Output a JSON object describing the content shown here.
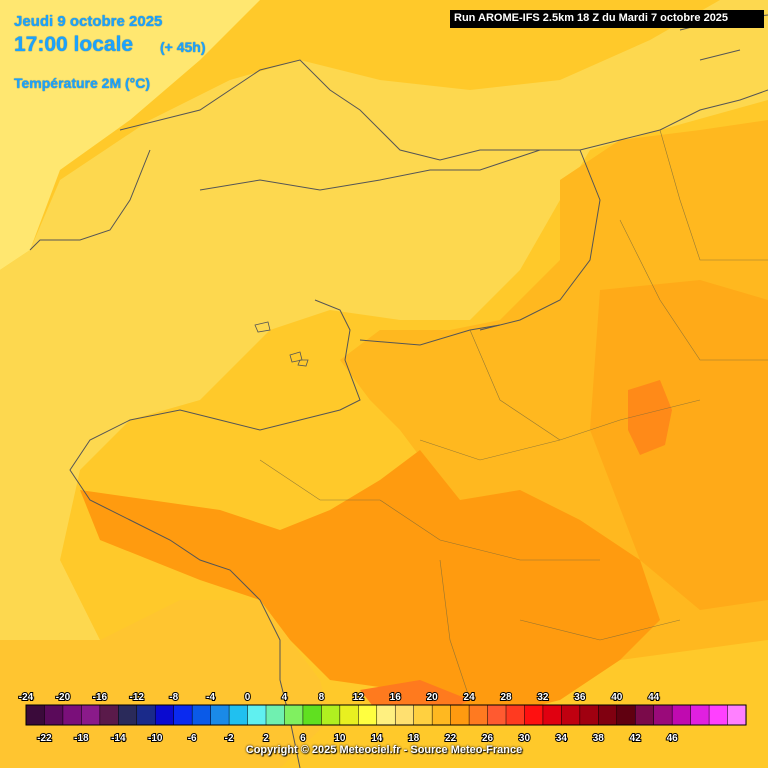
{
  "header": {
    "date": "Jeudi 9 octobre 2025",
    "time": "17:00 locale",
    "lead": "(+ 45h)",
    "variable": "Température 2M (°C)",
    "run": "Run AROME-IFS 2.5km 18 Z du Mardi 7 octobre 2025"
  },
  "legend": {
    "top_labels": [
      "-24",
      "-20",
      "-16",
      "-12",
      "-8",
      "-4",
      "0",
      "4",
      "8",
      "12",
      "16",
      "20",
      "24",
      "28",
      "32",
      "36",
      "40",
      "44"
    ],
    "bottom_labels": [
      "-22",
      "-18",
      "-14",
      "-10",
      "-6",
      "-2",
      "2",
      "6",
      "10",
      "14",
      "18",
      "22",
      "26",
      "30",
      "34",
      "38",
      "42",
      "46"
    ],
    "colors": [
      "#3a0a3a",
      "#5a0a5a",
      "#7a0f7a",
      "#8a1a8a",
      "#5a1a4a",
      "#2a2a5a",
      "#1a2a8a",
      "#0a0ad0",
      "#0a2af0",
      "#0a5ae8",
      "#1a8ae8",
      "#20c0f0",
      "#60f0f0",
      "#70f0b0",
      "#80f060",
      "#60e020",
      "#b0f020",
      "#e8f020",
      "#ffff40",
      "#fff080",
      "#ffe070",
      "#ffd040",
      "#ffb820",
      "#ff9a10",
      "#ff7a20",
      "#ff5a30",
      "#ff3a20",
      "#ff1010",
      "#e00010",
      "#c00010",
      "#a00010",
      "#800010",
      "#600010",
      "#7a0a4a",
      "#9a0a7a",
      "#c00ab0",
      "#e020e0",
      "#ff40ff",
      "#ff80ff"
    ]
  },
  "copyright": "Copyright © 2025 Meteociel.fr - Source Meteo-France",
  "colors": {
    "sea": "#ffe066",
    "land_base": "#fdd84f",
    "warm": "#ffb81f",
    "warmer": "#ff9b0f",
    "hot": "#ff7a1e",
    "label_blue": "#1aa3ff"
  }
}
